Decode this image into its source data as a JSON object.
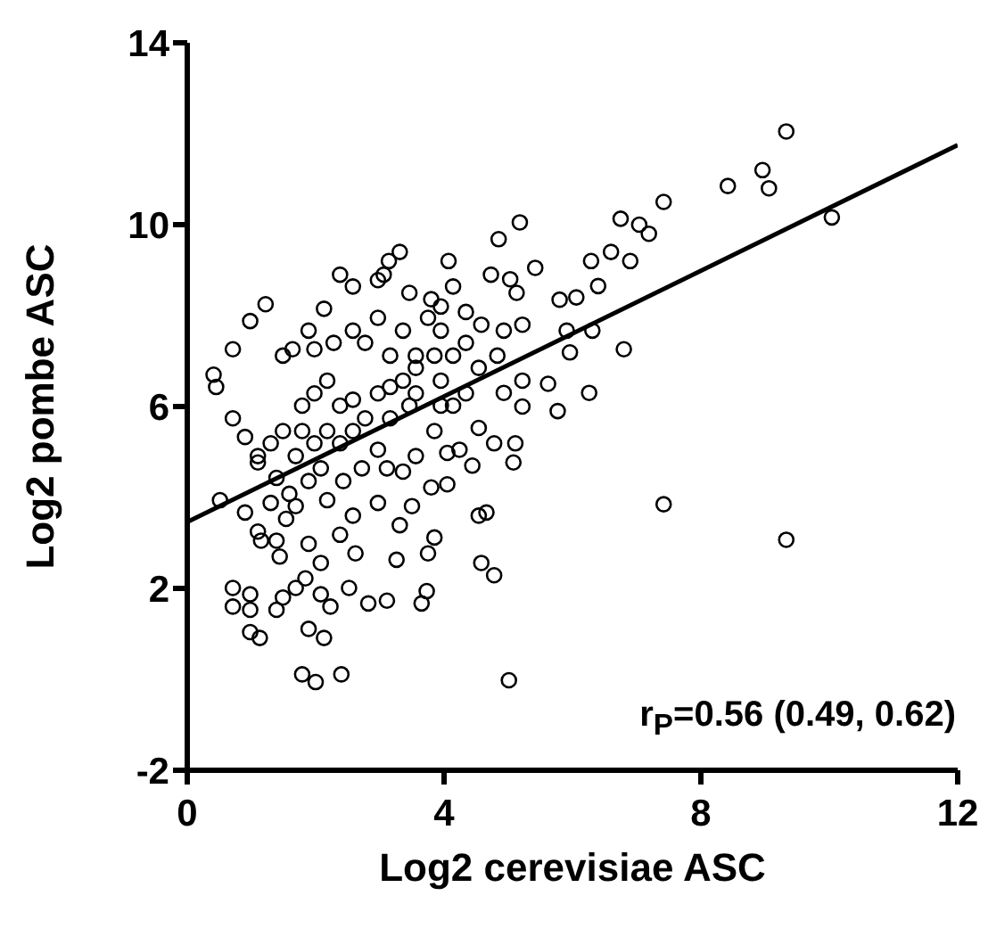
{
  "chart_data": {
    "type": "scatter",
    "xlabel": "Log2 cerevisiae ASC",
    "ylabel": "Log2 pombe ASC",
    "annotations": [
      "r$_{P}$=0.56 (0.49, 0.62)"
    ],
    "xlim": [
      0,
      12
    ],
    "xticks": [
      0,
      4,
      8,
      12
    ],
    "ylim": [
      -2,
      14
    ],
    "yticks": [
      -2,
      2,
      6,
      10,
      14
    ],
    "grid": false,
    "marker": "circle",
    "series": [
      {
        "color": "#000000",
        "x": [
          9.33,
          8.96,
          9.06,
          8.42,
          7.42,
          10.04,
          6.75,
          7.19,
          7.04,
          6.6,
          6.9,
          6.29,
          6.4,
          5.8,
          6.06,
          5.91,
          6.31,
          6.8,
          5.96,
          6.26,
          5.77,
          5.62,
          7.42,
          9.33,
          5.18,
          4.85,
          4.07,
          5.42,
          4.73,
          5.03,
          5.13,
          5.22,
          4.93,
          4.83,
          5.22,
          5.22,
          4.93,
          4.54,
          4.34,
          4.58,
          4.14,
          3.95,
          3.75,
          3.95,
          3.85,
          3.56,
          3.36,
          3.16,
          2.97,
          3.06,
          3.31,
          3.14,
          2.97,
          2.58,
          2.38,
          2.13,
          1.89,
          1.64,
          1.22,
          0.98,
          0.71,
          0.41,
          0.45,
          0.71,
          0.9,
          1.1,
          0.51,
          0.9,
          1.1,
          1.15,
          1.39,
          1.54,
          1.69,
          1.44,
          1.89,
          2.08,
          1.84,
          1.69,
          1.49,
          1.39,
          0.71,
          0.98,
          0.71,
          0.98,
          0.98,
          1.13,
          1.89,
          2.13,
          2.08,
          2.23,
          1.79,
          2.0,
          2.4,
          5.01,
          2.52,
          2.82,
          3.11,
          3.65,
          3.73,
          3.85,
          3.75,
          3.26,
          2.62,
          2.38,
          2.58,
          2.97,
          3.31,
          3.5,
          3.8,
          4.05,
          4.05,
          4.24,
          4.44,
          4.54,
          4.78,
          5.11,
          5.08,
          4.54,
          4.66,
          4.58,
          4.78,
          3.85,
          3.56,
          3.36,
          3.11,
          2.97,
          2.72,
          2.43,
          2.18,
          1.89,
          1.59,
          1.3,
          1.39,
          1.1,
          1.3,
          1.49,
          1.79,
          1.98,
          2.18,
          2.38,
          2.58,
          1.98,
          2.18,
          2.38,
          2.58,
          2.77,
          3.16,
          3.46,
          2.97,
          3.16,
          3.56,
          3.95,
          4.14,
          4.34,
          3.95,
          1.69,
          2.08,
          1.79,
          1.49,
          1.98,
          2.28,
          2.58,
          2.77,
          3.36,
          3.56,
          4.14,
          3.46,
          3.8,
          4.34
        ],
        "values": [
          12.05,
          11.2,
          10.8,
          10.85,
          10.5,
          10.16,
          10.13,
          9.8,
          10.0,
          9.4,
          9.2,
          9.2,
          8.65,
          8.35,
          8.4,
          7.67,
          7.67,
          7.26,
          7.19,
          6.3,
          5.9,
          6.5,
          3.85,
          3.07,
          10.05,
          9.68,
          9.2,
          9.05,
          8.9,
          8.8,
          8.5,
          7.8,
          7.67,
          7.12,
          6.57,
          6.0,
          6.3,
          6.85,
          7.4,
          7.8,
          8.64,
          8.2,
          7.95,
          7.67,
          7.12,
          6.85,
          6.57,
          7.12,
          7.95,
          8.9,
          9.4,
          9.2,
          8.78,
          8.64,
          8.9,
          8.15,
          7.67,
          7.26,
          8.25,
          7.88,
          7.26,
          6.7,
          6.43,
          5.74,
          5.33,
          4.91,
          3.94,
          3.67,
          3.25,
          3.05,
          3.05,
          3.53,
          3.81,
          2.7,
          2.98,
          2.56,
          2.22,
          2.01,
          1.8,
          1.53,
          2.01,
          1.87,
          1.6,
          1.53,
          1.04,
          0.91,
          1.11,
          0.91,
          1.87,
          1.6,
          0.11,
          -0.06,
          0.11,
          -0.02,
          2.01,
          1.67,
          1.73,
          1.67,
          1.94,
          3.12,
          2.77,
          2.63,
          2.77,
          3.18,
          3.6,
          3.88,
          3.39,
          3.81,
          4.22,
          4.29,
          4.98,
          5.05,
          4.7,
          5.53,
          5.19,
          5.19,
          4.77,
          3.6,
          3.67,
          2.56,
          2.29,
          5.46,
          4.91,
          4.57,
          4.64,
          5.05,
          4.64,
          4.36,
          3.94,
          4.36,
          4.08,
          3.88,
          4.43,
          4.77,
          5.19,
          5.46,
          6.02,
          6.29,
          6.57,
          6.02,
          6.15,
          5.19,
          5.46,
          5.19,
          5.46,
          5.74,
          5.74,
          6.02,
          6.29,
          6.43,
          6.29,
          6.57,
          6.02,
          6.29,
          6.02,
          4.91,
          4.64,
          5.46,
          7.12,
          7.26,
          7.4,
          7.67,
          7.4,
          7.67,
          7.12,
          7.12,
          8.5,
          8.36,
          8.08
        ]
      },
      {
        "type": "line",
        "color": "#000000",
        "x": [
          0,
          12
        ],
        "values": [
          3.46,
          11.75
        ],
        "marker": "none",
        "line_style": "solid"
      }
    ]
  }
}
